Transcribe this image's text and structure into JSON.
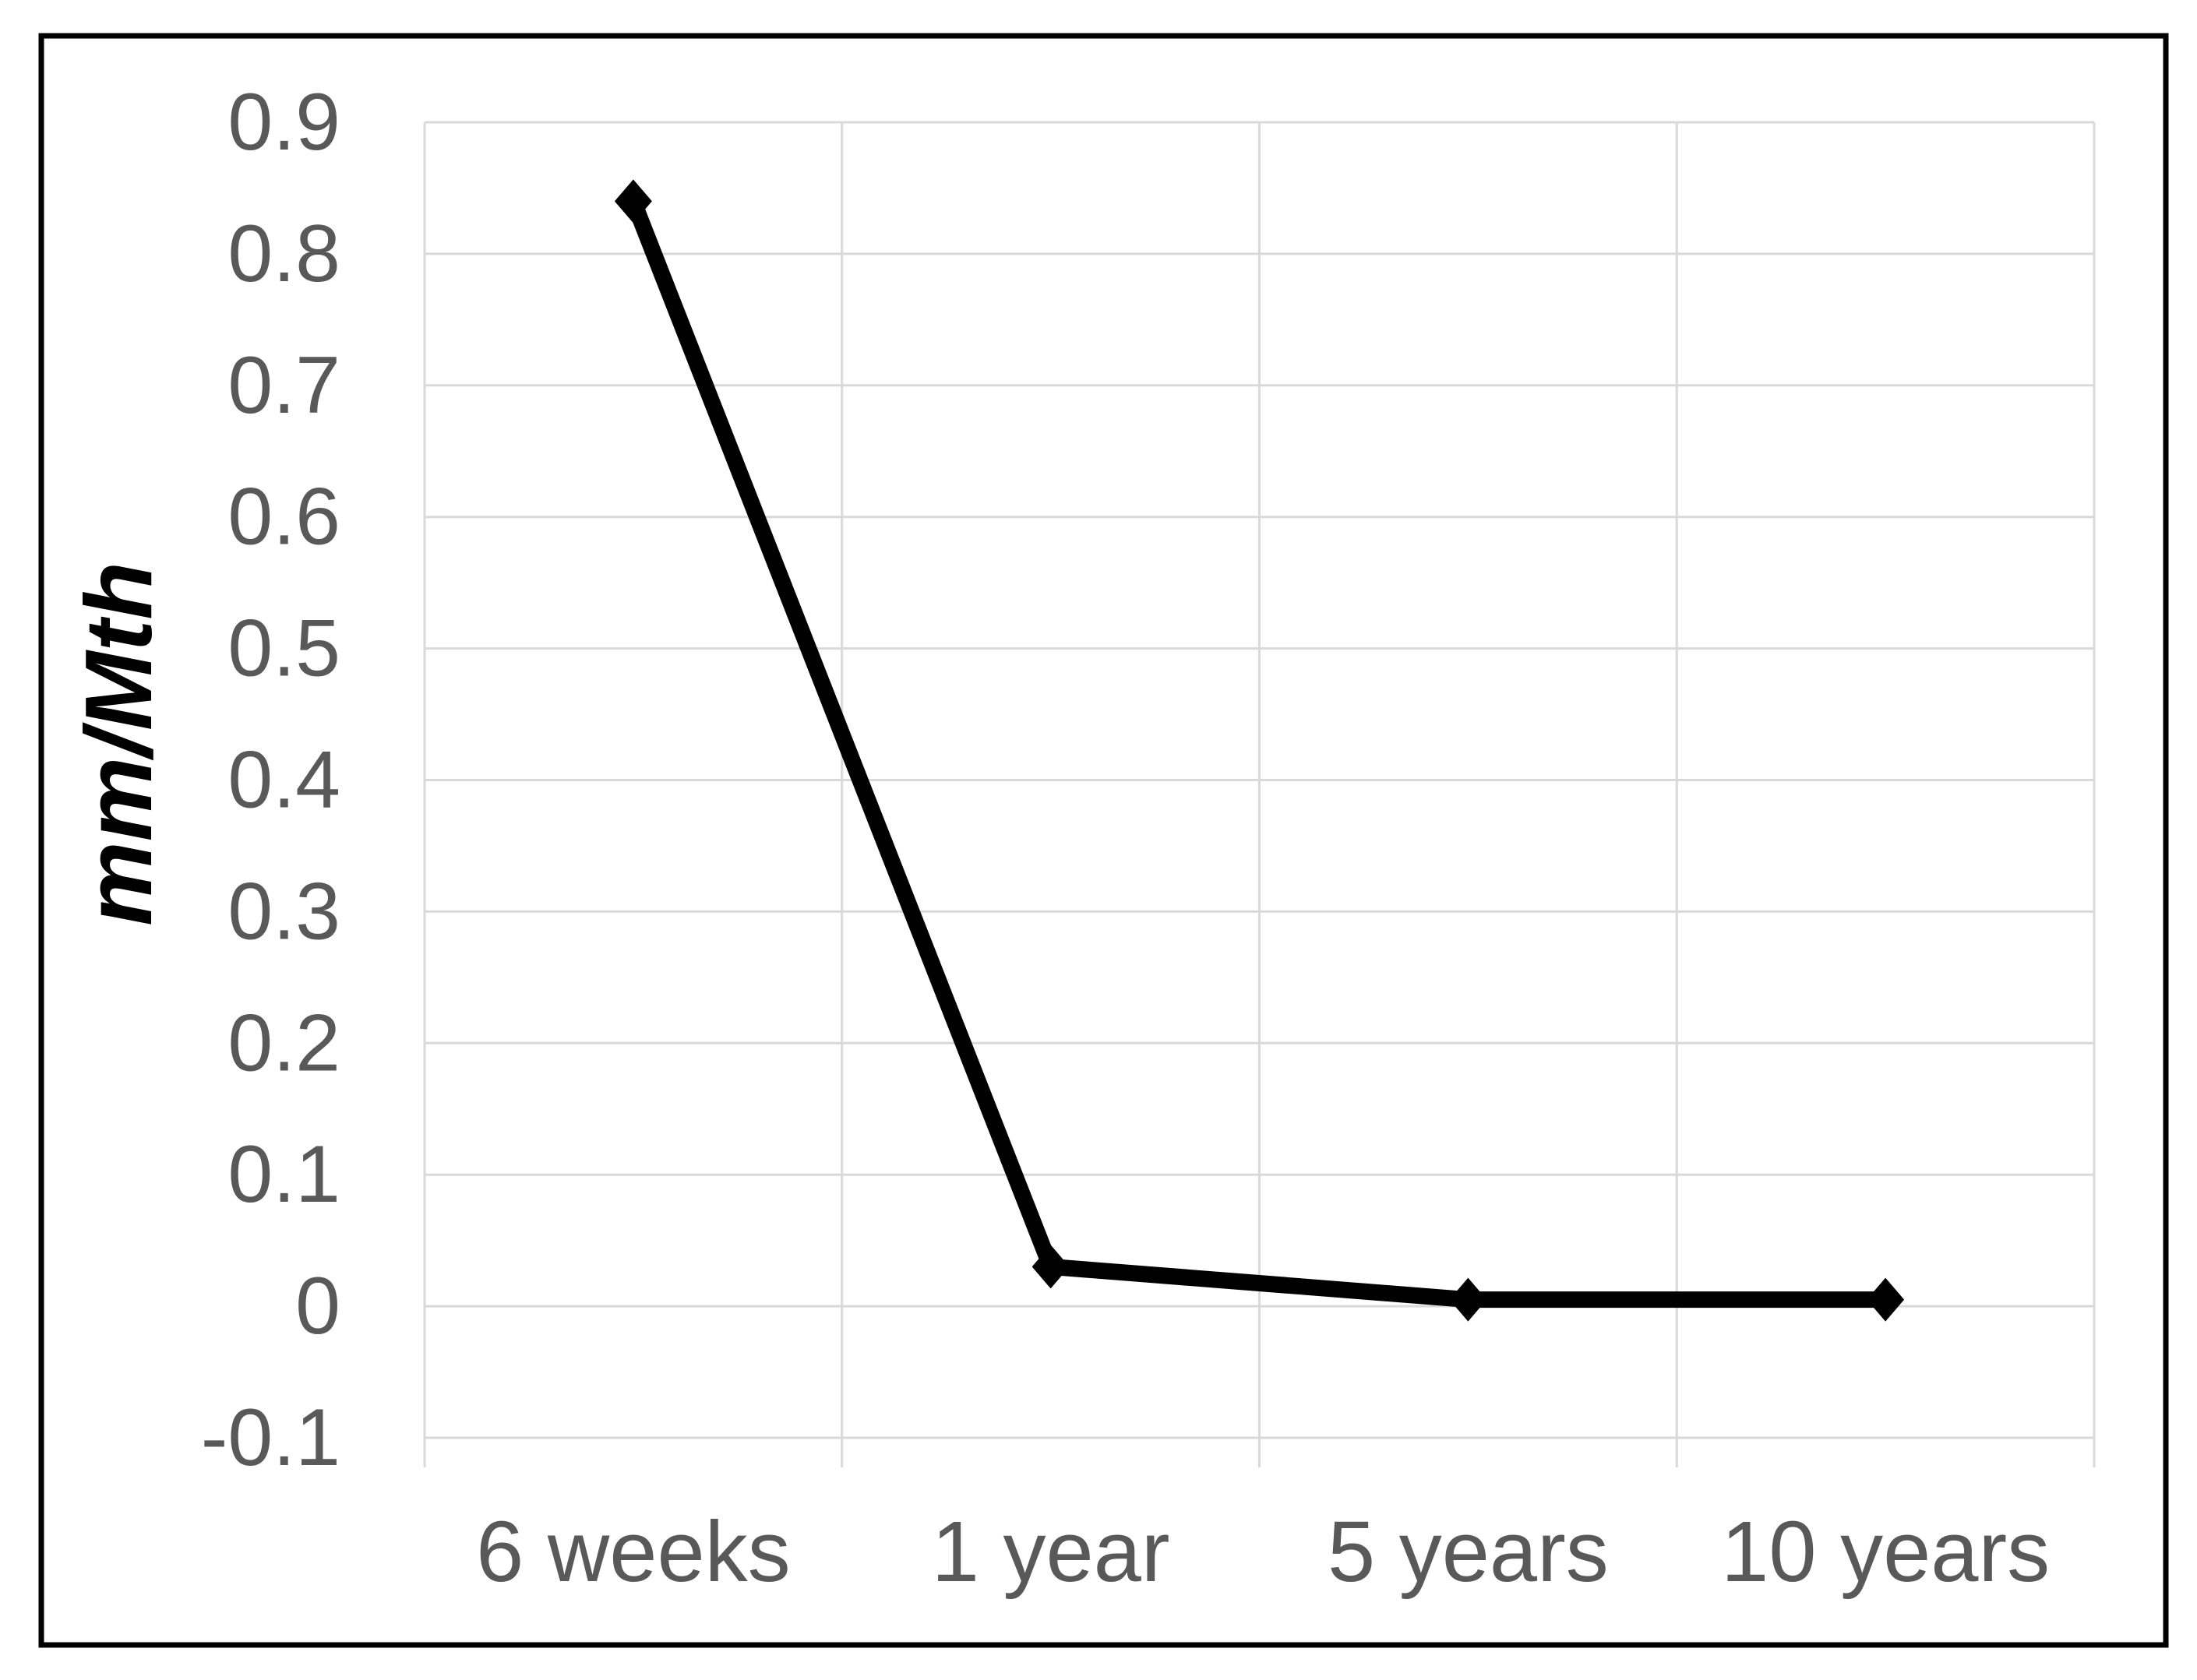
{
  "chart_data": {
    "type": "line",
    "categories": [
      "6 weeks",
      "1 year",
      "5 years",
      "10 years"
    ],
    "values": [
      0.84,
      0.03,
      0.005,
      0.005
    ],
    "title": "",
    "xlabel": "",
    "ylabel": "mm/Mth",
    "ylim": [
      -0.1,
      0.9
    ],
    "ytick_step": 0.1,
    "ytick_labels": [
      "0.9",
      "0.8",
      "0.7",
      "0.6",
      "0.5",
      "0.4",
      "0.3",
      "0.2",
      "0.1",
      "0",
      "-0.1"
    ],
    "grid": true,
    "legend": "none",
    "marker": "diamond",
    "colors": {
      "line": "#000000",
      "marker": "#000000",
      "gridline": "#d9d9d9",
      "tick_label": "#595959",
      "axis_title": "#000000",
      "frame": "#000000",
      "background": "#ffffff"
    }
  }
}
